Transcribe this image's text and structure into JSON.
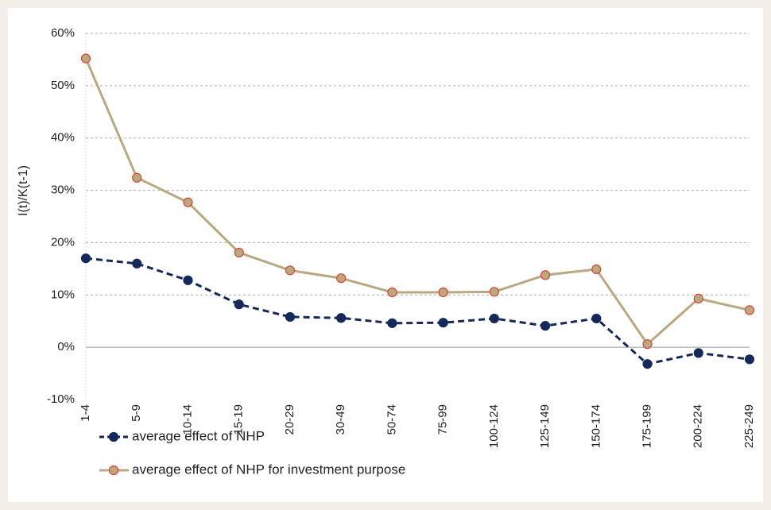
{
  "chart_data": {
    "type": "line",
    "y_label": "I(t)/K(t-1)",
    "categories": [
      "1-4",
      "5-9",
      "10-14",
      "15-19",
      "20-29",
      "30-49",
      "50-74",
      "75-99",
      "100-124",
      "125-149",
      "150-174",
      "175-199",
      "200-224",
      "225-249"
    ],
    "series": [
      {
        "name": "average effect of NHP",
        "color": "#14285a",
        "line_style": "dashed",
        "marker_edge": "#14285a",
        "values": [
          17.0,
          16.0,
          12.8,
          8.2,
          5.8,
          5.6,
          4.6,
          4.7,
          5.5,
          4.1,
          5.5,
          -3.2,
          -1.1,
          -2.3
        ]
      },
      {
        "name": "average effect of NHP for investment purpose",
        "color": "#b8a982",
        "line_style": "solid",
        "marker_edge": "#e0412c",
        "values": [
          55.2,
          32.4,
          27.7,
          18.1,
          14.7,
          13.2,
          10.5,
          10.5,
          10.6,
          13.8,
          14.9,
          0.6,
          9.3,
          7.1
        ]
      }
    ],
    "ylim": [
      -10,
      60
    ],
    "yticks": [
      {
        "value": -10,
        "label": "-10%"
      },
      {
        "value": 0,
        "label": "0%"
      },
      {
        "value": 10,
        "label": "10%"
      },
      {
        "value": 20,
        "label": "20%"
      },
      {
        "value": 30,
        "label": "30%"
      },
      {
        "value": 40,
        "label": "40%"
      },
      {
        "value": 50,
        "label": "50%"
      },
      {
        "value": 60,
        "label": "60%"
      }
    ],
    "grid": true,
    "legend": "bottom-left"
  }
}
